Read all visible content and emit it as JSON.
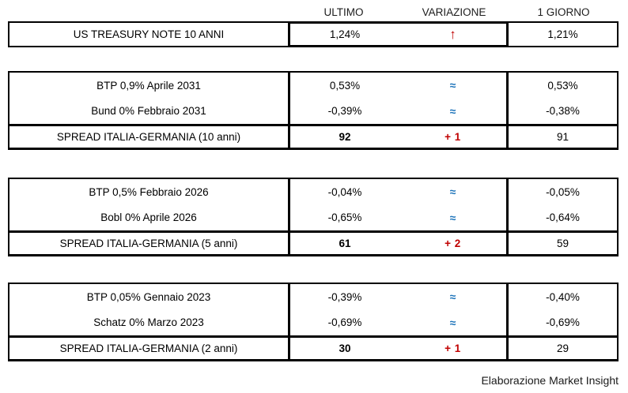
{
  "colors": {
    "blue": "#1F75BB",
    "red": "#C00000",
    "border": "#000000"
  },
  "header": {
    "columns": [
      "ULTIMO",
      "VARIAZIONE",
      "1 GIORNO"
    ]
  },
  "treasury": {
    "label": "US TREASURY NOTE 10 ANNI",
    "ultimo": "1,24%",
    "variazione": "↑",
    "giorno": "1,21%"
  },
  "sections": [
    {
      "bonds": [
        {
          "label": "BTP 0,9% Aprile 2031",
          "ultimo": "0,53%",
          "variazione": "≈",
          "giorno": "0,53%"
        },
        {
          "label": "Bund 0% Febbraio 2031",
          "ultimo": "-0,39%",
          "variazione": "≈",
          "giorno": "-0,38%"
        }
      ],
      "spread": {
        "label": "SPREAD ITALIA-GERMANIA (10 anni)",
        "ultimo": "92",
        "variazione": "+ 1",
        "giorno": "91"
      }
    },
    {
      "bonds": [
        {
          "label": "BTP 0,5% Febbraio 2026",
          "ultimo": "-0,04%",
          "variazione": "≈",
          "giorno": "-0,05%"
        },
        {
          "label": "Bobl 0% Aprile 2026",
          "ultimo": "-0,65%",
          "variazione": "≈",
          "giorno": "-0,64%"
        }
      ],
      "spread": {
        "label": "SPREAD ITALIA-GERMANIA (5 anni)",
        "ultimo": "61",
        "variazione": "+ 2",
        "giorno": "59"
      }
    },
    {
      "bonds": [
        {
          "label": "BTP 0,05% Gennaio 2023",
          "ultimo": "-0,39%",
          "variazione": "≈",
          "giorno": "-0,40%"
        },
        {
          "label": "Schatz 0% Marzo 2023",
          "ultimo": "-0,69%",
          "variazione": "≈",
          "giorno": "-0,69%"
        }
      ],
      "spread": {
        "label": "SPREAD ITALIA-GERMANIA (2 anni)",
        "ultimo": "30",
        "variazione": "+ 1",
        "giorno": "29"
      }
    }
  ],
  "footer": {
    "credit": "Elaborazione Market Insight"
  }
}
